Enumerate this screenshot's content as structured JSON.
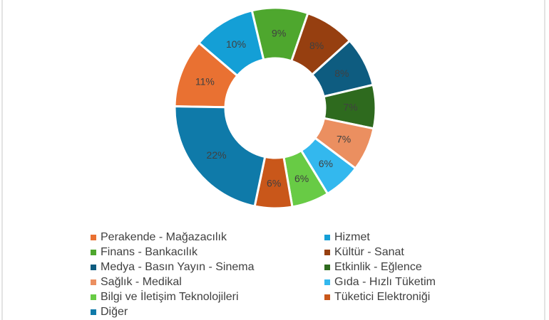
{
  "chart_data": {
    "type": "pie",
    "subtype": "doughnut",
    "title": "",
    "start_angle_deg": 271,
    "categories": [
      "Perakende - Mağazacılık",
      "Hizmet",
      "Finans - Bankacılık",
      "Kültür - Sanat",
      "Medya - Basın Yayın - Sinema",
      "Etkinlik - Eğlence",
      "Sağlık - Medikal",
      "Gıda - Hızlı Tüketim",
      "Bilgi ve İletişim Teknolojileri",
      "Tüketici Elektroniği",
      "Diğer"
    ],
    "values": [
      11,
      10,
      9,
      8,
      8,
      7,
      7,
      6,
      6,
      6,
      22
    ],
    "labels": [
      "11%",
      "10%",
      "9%",
      "8%",
      "8%",
      "7%",
      "7%",
      "6%",
      "6%",
      "6%",
      "22%"
    ],
    "colors": [
      "#E97132",
      "#149FD6",
      "#4EA72E",
      "#963F10",
      "#0E5C80",
      "#2E6A1E",
      "#EB8F60",
      "#33B8EE",
      "#68CB45",
      "#C9571A",
      "#0F7AA9"
    ],
    "legend_position": "bottom",
    "unit": "%"
  },
  "legend": {
    "items": [
      {
        "label": "Perakende - Mağazacılık",
        "color": "#E97132"
      },
      {
        "label": "Hizmet",
        "color": "#149FD6"
      },
      {
        "label": "Finans - Bankacılık",
        "color": "#4EA72E"
      },
      {
        "label": "Kültür - Sanat",
        "color": "#963F10"
      },
      {
        "label": "Medya - Basın Yayın - Sinema",
        "color": "#0E5C80"
      },
      {
        "label": "Etkinlik - Eğlence",
        "color": "#2E6A1E"
      },
      {
        "label": "Sağlık - Medikal",
        "color": "#EB8F60"
      },
      {
        "label": "Gıda - Hızlı Tüketim",
        "color": "#33B8EE"
      },
      {
        "label": "Bilgi ve İletişim Teknolojileri",
        "color": "#68CB45"
      },
      {
        "label": "Tüketici Elektroniği",
        "color": "#C9571A"
      },
      {
        "label": "Diğer",
        "color": "#0F7AA9"
      }
    ]
  }
}
